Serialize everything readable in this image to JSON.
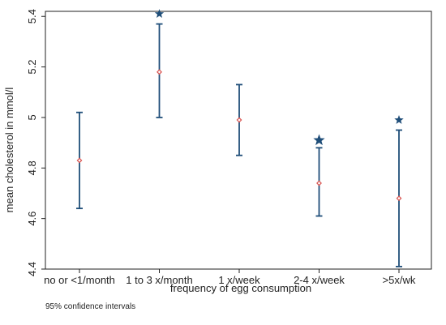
{
  "chart_data": {
    "type": "scatter",
    "subtype": "error-bar",
    "categories": [
      "no or <1/month",
      "1 to 3 x/month",
      "1 x/week",
      "2-4 x/week",
      ">5x/wk"
    ],
    "series": [
      {
        "means": [
          4.83,
          5.18,
          4.99,
          4.74,
          4.68
        ],
        "ci_lower": [
          4.64,
          5.0,
          4.85,
          4.61,
          4.41
        ],
        "ci_upper": [
          5.02,
          5.37,
          5.13,
          4.88,
          4.95
        ],
        "marker": "diamond",
        "color": "#d9534f"
      }
    ],
    "significance_stars": [
      {
        "category_index": 1,
        "y": 5.41
      },
      {
        "category_index": 3,
        "y": 4.91
      },
      {
        "category_index": 4,
        "y": 4.99
      }
    ],
    "xlabel": "frequency of egg consumption",
    "ylabel": "mean cholesterol in mmol/l",
    "ylim": [
      4.4,
      5.42
    ],
    "yticks": [
      4.4,
      4.6,
      4.8,
      5,
      5.2,
      5.4
    ],
    "ytick_labels": [
      "4.4",
      "4.6",
      "4.8",
      "5",
      "5.2",
      "5.4"
    ],
    "note": "95% confidence intervals",
    "grid": false,
    "colors": {
      "errorbar": "#1f4e79",
      "marker": "#d9534f",
      "star": "#1f4e79",
      "axis": "#222222"
    }
  }
}
